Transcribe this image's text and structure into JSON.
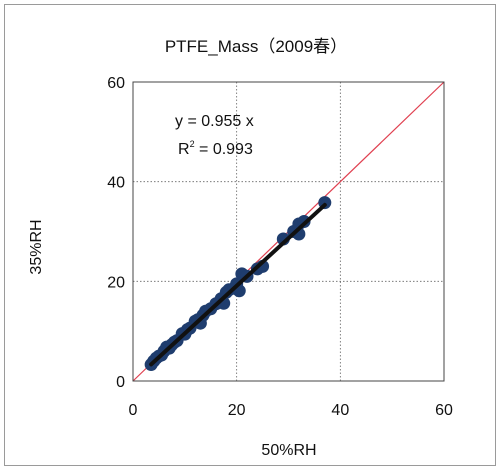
{
  "chart_data": {
    "type": "scatter",
    "title": "PTFE_Mass（2009春）",
    "xlabel": "50%RH",
    "ylabel": "35%RH",
    "xlim": [
      0,
      60
    ],
    "ylim": [
      0,
      60
    ],
    "xticks": [
      0,
      20,
      40,
      60
    ],
    "yticks": [
      0,
      20,
      40,
      60
    ],
    "grid": "dotted at 20,40",
    "annotations": {
      "equation": "y = 0.955 x",
      "r2_prefix": "R",
      "r2_sup": "2",
      "r2_value": " = 0.993"
    },
    "colors": {
      "points": "#1f3d6e",
      "fit_line": "#111111",
      "one_to_one": "#e04050",
      "grid": "#666666"
    },
    "lines": {
      "fit_slope": 0.955,
      "one_to_one_slope": 1
    },
    "points": [
      {
        "x": 3.5,
        "y": 3.3
      },
      {
        "x": 4.0,
        "y": 4.0
      },
      {
        "x": 4.5,
        "y": 4.6
      },
      {
        "x": 5.0,
        "y": 5.0
      },
      {
        "x": 5.5,
        "y": 5.2
      },
      {
        "x": 6.0,
        "y": 6.0
      },
      {
        "x": 6.5,
        "y": 6.8
      },
      {
        "x": 7.0,
        "y": 6.6
      },
      {
        "x": 7.5,
        "y": 7.3
      },
      {
        "x": 8.0,
        "y": 7.8
      },
      {
        "x": 8.5,
        "y": 8.1
      },
      {
        "x": 9.5,
        "y": 9.5
      },
      {
        "x": 10.0,
        "y": 9.4
      },
      {
        "x": 10.5,
        "y": 10.3
      },
      {
        "x": 11.0,
        "y": 10.6
      },
      {
        "x": 12.0,
        "y": 12.0
      },
      {
        "x": 12.5,
        "y": 12.3
      },
      {
        "x": 13.0,
        "y": 11.6
      },
      {
        "x": 13.5,
        "y": 13.2
      },
      {
        "x": 14.0,
        "y": 14.0
      },
      {
        "x": 15.0,
        "y": 14.5
      },
      {
        "x": 16.0,
        "y": 15.5
      },
      {
        "x": 17.0,
        "y": 16.5
      },
      {
        "x": 17.5,
        "y": 15.6
      },
      {
        "x": 18.0,
        "y": 17.8
      },
      {
        "x": 18.5,
        "y": 18.3
      },
      {
        "x": 19.5,
        "y": 18.6
      },
      {
        "x": 20.0,
        "y": 19.5
      },
      {
        "x": 20.5,
        "y": 18.1
      },
      {
        "x": 21.0,
        "y": 21.5
      },
      {
        "x": 22.0,
        "y": 21.0
      },
      {
        "x": 24.0,
        "y": 22.5
      },
      {
        "x": 25.0,
        "y": 23.0
      },
      {
        "x": 29.0,
        "y": 28.5
      },
      {
        "x": 31.0,
        "y": 30.0
      },
      {
        "x": 32.0,
        "y": 31.5
      },
      {
        "x": 32.0,
        "y": 29.5
      },
      {
        "x": 33.0,
        "y": 32.0
      },
      {
        "x": 37.0,
        "y": 35.8
      }
    ]
  }
}
